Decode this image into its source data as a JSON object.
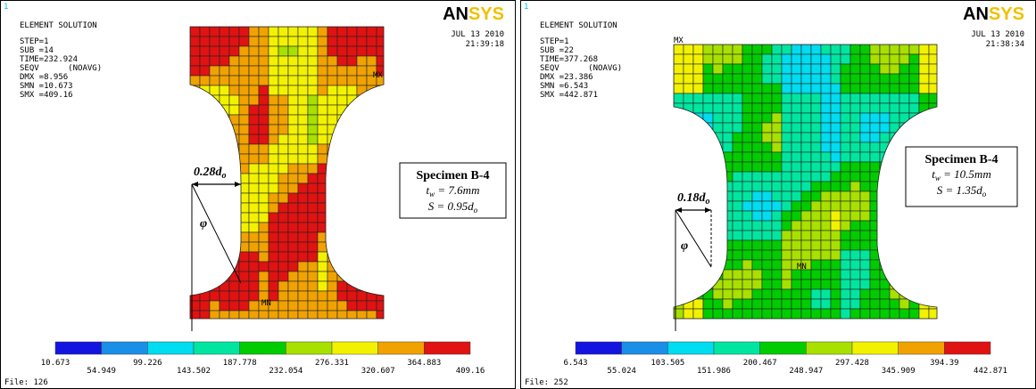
{
  "panels": [
    {
      "corner": "1",
      "header": [
        "ELEMENT SOLUTION",
        "STEP=1",
        "SUB =14",
        "TIME=232.924",
        "SEQV      (NOAVG)",
        "DMX =8.956",
        "SMN =10.673",
        "SMX =409.16"
      ],
      "logo": [
        "AN",
        "SYS"
      ],
      "date": "JUL 13 2010",
      "time": "21:39:18",
      "mx": "MX",
      "mn": "MN",
      "dimension": [
        "0.28d",
        "o"
      ],
      "angle": "φ",
      "specimen": {
        "title": "Specimen B-4",
        "thickness": [
          "t",
          "w",
          " = 7.6mm"
        ],
        "spacing": [
          "S = 0.95d",
          "o"
        ]
      },
      "legend": [
        10.673,
        54.949,
        99.226,
        143.502,
        187.778,
        232.054,
        276.331,
        320.607,
        364.883,
        409.16
      ],
      "file": "File: 126"
    },
    {
      "corner": "1",
      "header": [
        "ELEMENT SOLUTION",
        "STEP=1",
        "SUB =22",
        "TIME=377.268",
        "SEQV      (NOAVG)",
        "DMX =23.386",
        "SMN =6.543",
        "SMX =442.871"
      ],
      "logo": [
        "AN",
        "SYS"
      ],
      "date": "JUL 13 2010",
      "time": "21:38:34",
      "mx": "MX",
      "mn": "MN",
      "dimension": [
        "0.18d",
        "o"
      ],
      "angle": "φ",
      "specimen": {
        "title": "Specimen B-4",
        "thickness": [
          "t",
          "w",
          " = 10.5mm"
        ],
        "spacing": [
          "S = 1.35d",
          "o"
        ]
      },
      "legend": [
        6.543,
        55.024,
        103.505,
        151.986,
        200.467,
        248.947,
        297.428,
        345.909,
        394.39,
        442.871
      ],
      "file": "File: 252"
    }
  ]
}
